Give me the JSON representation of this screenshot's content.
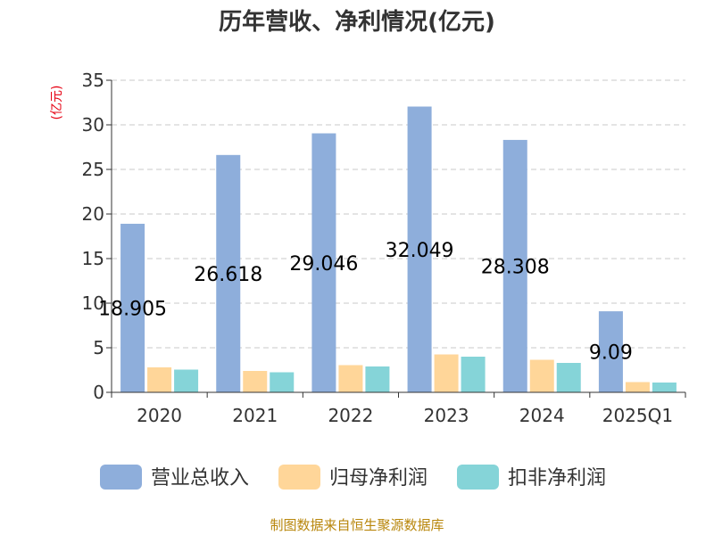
{
  "chart_data": {
    "type": "bar",
    "title": "历年营收、净利情况(亿元)",
    "ylabel": "(亿元)",
    "xlabel": "",
    "ylim": [
      0,
      35
    ],
    "yticks": [
      0,
      5,
      10,
      15,
      20,
      25,
      30,
      35
    ],
    "grid": true,
    "legend_position": "bottom",
    "categories": [
      "2020",
      "2021",
      "2022",
      "2023",
      "2024",
      "2025Q1"
    ],
    "series": [
      {
        "name": "营业总收入",
        "color": "#8eaedb",
        "values": [
          18.905,
          26.618,
          29.046,
          32.049,
          28.308,
          9.09
        ],
        "labels": [
          "18.905",
          "26.618",
          "29.046",
          "32.049",
          "28.308",
          "9.09"
        ]
      },
      {
        "name": "归母净利润",
        "color": "#ffd699",
        "values": [
          2.8,
          2.4,
          3.05,
          4.25,
          3.65,
          1.15
        ]
      },
      {
        "name": "扣非净利润",
        "color": "#85d4d8",
        "values": [
          2.55,
          2.25,
          2.9,
          4.0,
          3.3,
          1.1
        ]
      }
    ],
    "source": "制图数据来自恒生聚源数据库"
  }
}
